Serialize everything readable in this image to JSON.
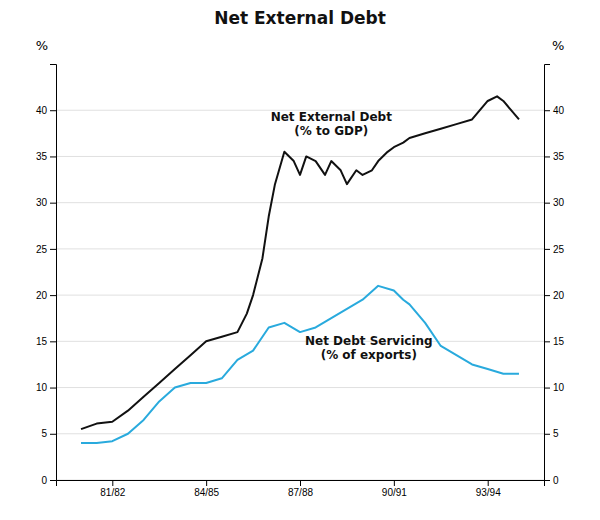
{
  "chart_data": {
    "type": "line",
    "title": "Net External Debt",
    "y_label": "%",
    "y2_label": "%",
    "xlim": [
      1979.2,
      1994.8
    ],
    "xticks": [
      {
        "value": 1981,
        "label": "81/82"
      },
      {
        "value": 1984,
        "label": "84/85"
      },
      {
        "value": 1987,
        "label": "87/88"
      },
      {
        "value": 1990,
        "label": "90/91"
      },
      {
        "value": 1993,
        "label": "93/94"
      }
    ],
    "ylim": [
      0,
      45
    ],
    "yticks": [
      0,
      5,
      10,
      15,
      20,
      25,
      30,
      35,
      40
    ],
    "y2lim": [
      0,
      45
    ],
    "y2ticks": [
      0,
      5,
      10,
      15,
      20,
      25,
      30,
      35,
      40
    ],
    "grid": true,
    "series": [
      {
        "color": "#111111",
        "x": [
          1980,
          1980.5,
          1981,
          1981.5,
          1982,
          1982.5,
          1983,
          1983.5,
          1984,
          1984.5,
          1985,
          1985.3,
          1985.5,
          1985.8,
          1986,
          1986.2,
          1986.5,
          1986.8,
          1987,
          1987.2,
          1987.5,
          1987.8,
          1988,
          1988.3,
          1988.5,
          1988.8,
          1989,
          1989.3,
          1989.5,
          1989.8,
          1990,
          1990.3,
          1990.5,
          1991,
          1991.5,
          1992,
          1992.5,
          1993,
          1993.3,
          1993.5,
          1994
        ],
        "values": [
          5.5,
          6.1,
          6.3,
          7.5,
          9.0,
          10.5,
          12.0,
          13.5,
          15.0,
          15.5,
          16.0,
          18.0,
          20.0,
          24.0,
          28.5,
          32.0,
          35.5,
          34.5,
          33.0,
          35.0,
          34.5,
          33.0,
          34.5,
          33.5,
          32.0,
          33.5,
          33.0,
          33.5,
          34.5,
          35.5,
          36.0,
          36.5,
          37.0,
          37.5,
          38.0,
          38.5,
          39.0,
          41.0,
          41.5,
          41.0,
          39.0
        ]
      },
      {
        "color": "#29aadd",
        "x": [
          1980,
          1980.5,
          1981,
          1981.5,
          1982,
          1982.5,
          1983,
          1983.5,
          1984,
          1984.5,
          1985,
          1985.5,
          1986,
          1986.5,
          1987,
          1987.5,
          1988,
          1988.5,
          1989,
          1989.5,
          1990,
          1990.3,
          1990.5,
          1991,
          1991.5,
          1992,
          1992.5,
          1993,
          1993.5,
          1994
        ],
        "values": [
          4.0,
          4.0,
          4.2,
          5.0,
          6.5,
          8.5,
          10.0,
          10.5,
          10.5,
          11.0,
          13.0,
          14.0,
          16.5,
          17.0,
          16.0,
          16.5,
          17.5,
          18.5,
          19.5,
          21.0,
          20.5,
          19.5,
          19.0,
          17.0,
          14.5,
          13.5,
          12.5,
          12.0,
          11.5,
          11.5
        ]
      }
    ],
    "annotations": [
      {
        "text": "Net External Debt\n(% to GDP)",
        "x": 1988.0,
        "y": 38.5,
        "color": "#111111"
      },
      {
        "text": "Net Debt Servicing\n(% of exports)",
        "x": 1989.2,
        "y": 14.2,
        "color": "#111111"
      }
    ]
  }
}
